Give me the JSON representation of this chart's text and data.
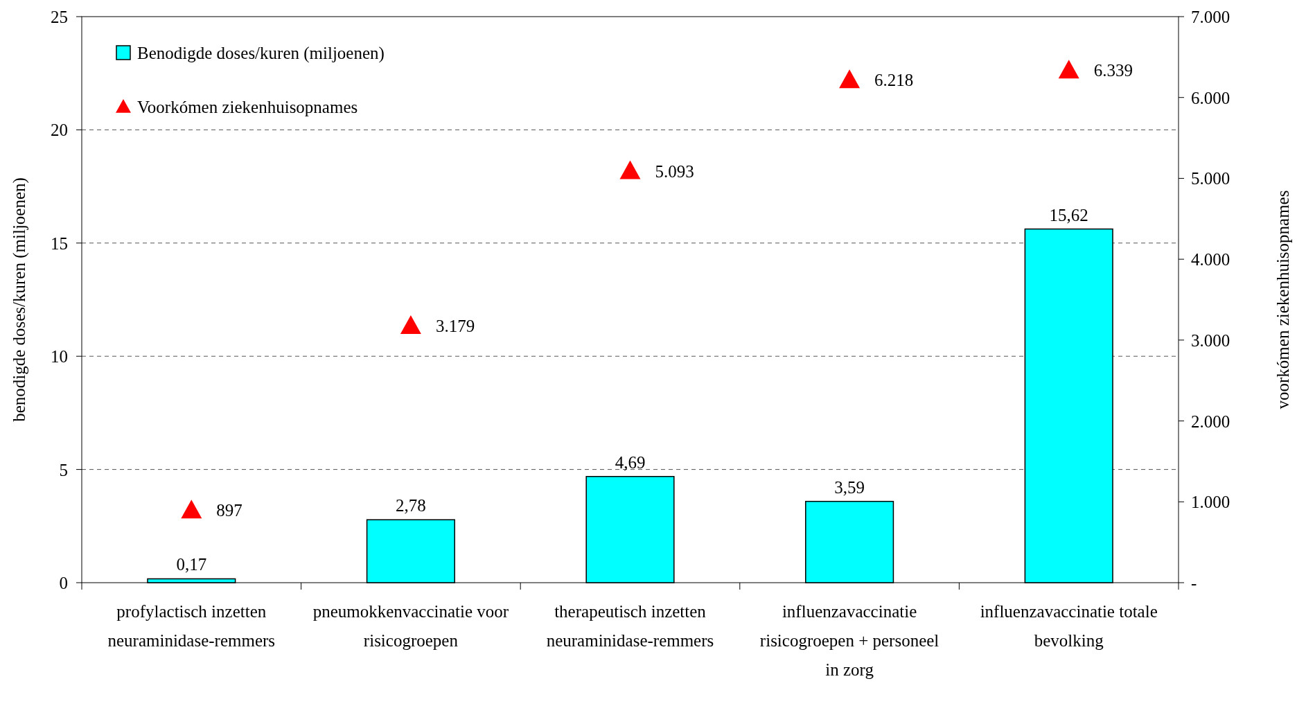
{
  "chart_data": {
    "type": "bar",
    "categories": [
      "profylactisch inzetten neuraminidase-remmers",
      "pneumokkenvaccinatie voor risicogroepen",
      "therapeutisch inzetten neuraminidase-remmers",
      "influenzavaccinatie risicogroepen + personeel in zorg",
      "influenzavaccinatie totale bevolking"
    ],
    "series": [
      {
        "name": "Benodigde doses/kuren (miljoenen)",
        "color": "#00ffff",
        "values": [
          0.17,
          2.78,
          4.69,
          3.59,
          15.62
        ],
        "value_labels": [
          "0,17",
          "2,78",
          "4,69",
          "3,59",
          "15,62"
        ]
      },
      {
        "name": "Voorkómen ziekenhuisopnames",
        "type": "scatter",
        "axis": "y2",
        "marker": "triangle",
        "color": "#ff0000",
        "values": [
          897,
          3179,
          5093,
          6218,
          6339
        ],
        "value_labels": [
          "897",
          "3.179",
          "5.093",
          "6.218",
          "6.339"
        ]
      }
    ],
    "ylabel": "benodigde doses/kuren (miljoenen)",
    "y2label": "voorkómen ziekenhuisopnames",
    "ylim": [
      0,
      25
    ],
    "yticks": [
      0,
      5,
      10,
      15,
      20,
      25
    ],
    "y2lim": [
      0,
      7000
    ],
    "y2ticks": [
      {
        "value": 0,
        "label": "-"
      },
      {
        "value": 1000,
        "label": "1.000"
      },
      {
        "value": 2000,
        "label": "2.000"
      },
      {
        "value": 3000,
        "label": "3.000"
      },
      {
        "value": 4000,
        "label": "4.000"
      },
      {
        "value": 5000,
        "label": "5.000"
      },
      {
        "value": 6000,
        "label": "6.000"
      },
      {
        "value": 7000,
        "label": "7.000"
      }
    ],
    "grid": "y",
    "legend": "top left"
  }
}
